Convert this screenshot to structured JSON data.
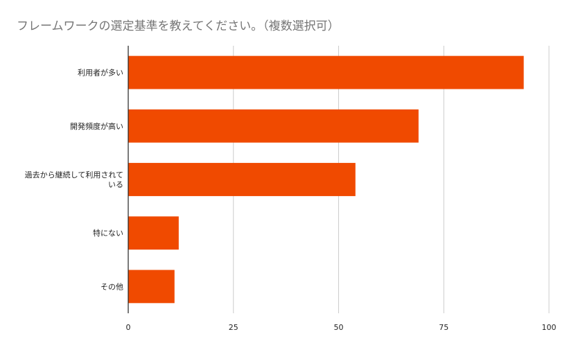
{
  "chart_data": {
    "type": "bar",
    "orientation": "horizontal",
    "title": "フレームワークの選定基準を教えてください。（複数選択可）",
    "categories": [
      "利用者が多い",
      "開発頻度が高い",
      "過去から継続して利用されている",
      "特にない",
      "その他"
    ],
    "category_label_lines": [
      [
        "利用者が多い"
      ],
      [
        "開発頻度が高い"
      ],
      [
        "過去から継続して利用されて",
        "いる"
      ],
      [
        "特にない"
      ],
      [
        "その他"
      ]
    ],
    "values": [
      94,
      69,
      54,
      12,
      11
    ],
    "xlim": [
      0,
      100
    ],
    "x_ticks": [
      "0",
      "25",
      "50",
      "75",
      "100"
    ],
    "grid": true,
    "bar_color": "#f04a00",
    "grid_color": "#cccccc",
    "axis_color": "#222222"
  }
}
